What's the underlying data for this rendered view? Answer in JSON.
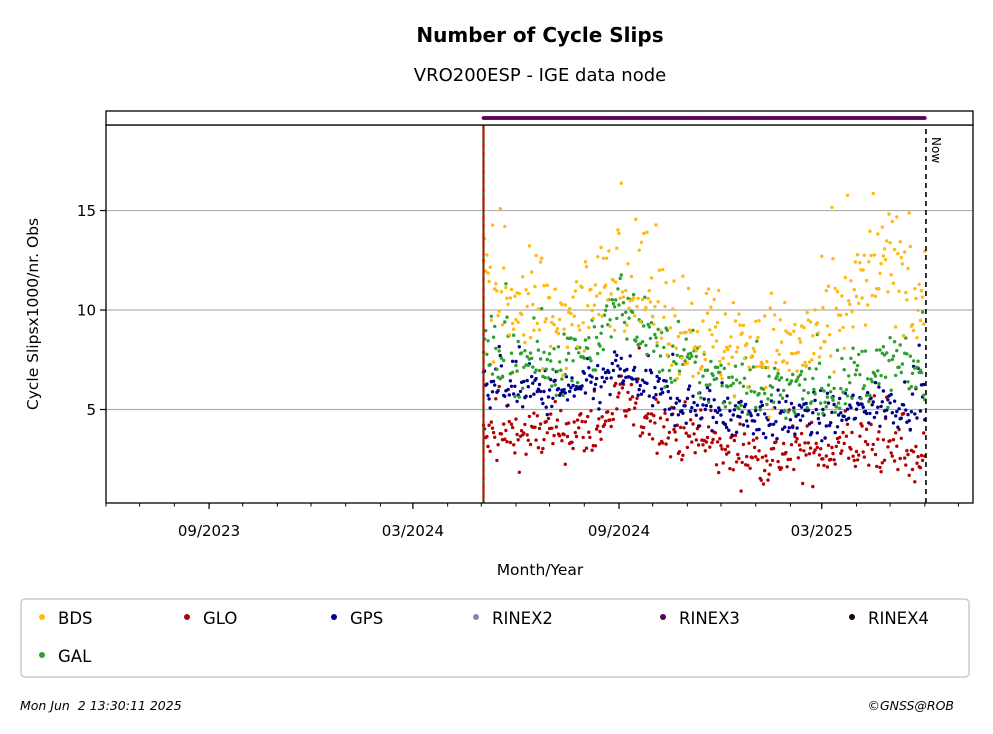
{
  "chart_data": {
    "type": "scatter",
    "title": "Number of Cycle Slips",
    "subtitle": "VRO200ESP - IGE data node",
    "xlabel": "Month/Year",
    "ylabel": "Cycle Slipsx1000/nr. Obs",
    "x_range": [
      "2023-06-01",
      "2025-07-14"
    ],
    "ylim": [
      0.3,
      19.3
    ],
    "y_ticks": [
      5,
      10,
      15
    ],
    "x_ticks": [
      {
        "date": "2023-09-01",
        "label": "09/2023"
      },
      {
        "date": "2024-03-01",
        "label": "03/2024"
      },
      {
        "date": "2024-09-01",
        "label": "09/2024"
      },
      {
        "date": "2025-03-01",
        "label": "03/2025"
      }
    ],
    "grid": "horizontal",
    "data_start": "2024-05-03",
    "data_end": "2025-06-01",
    "now_date": "2025-06-02",
    "now_label": "Now",
    "series": [
      {
        "name": "BDS",
        "color": "#FFB90F",
        "trend": [
          [
            "2024-05-03",
            11.5
          ],
          [
            "2024-07-01",
            9.5
          ],
          [
            "2024-08-15",
            10.5
          ],
          [
            "2024-09-01",
            12.5
          ],
          [
            "2024-10-15",
            9.5
          ],
          [
            "2024-12-01",
            8.5
          ],
          [
            "2025-01-15",
            8
          ],
          [
            "2025-03-01",
            8.5
          ],
          [
            "2025-04-20",
            12
          ],
          [
            "2025-05-10",
            12.5
          ],
          [
            "2025-06-01",
            10
          ]
        ],
        "spread": 1.4
      },
      {
        "name": "GLO",
        "color": "#B40000",
        "trend": [
          [
            "2024-05-03",
            3.5
          ],
          [
            "2024-07-01",
            3.8
          ],
          [
            "2024-08-15",
            4
          ],
          [
            "2024-09-01",
            5.5
          ],
          [
            "2024-10-15",
            4
          ],
          [
            "2024-12-01",
            3
          ],
          [
            "2025-01-15",
            2.6
          ],
          [
            "2025-03-01",
            3
          ],
          [
            "2025-04-20",
            3.2
          ],
          [
            "2025-06-01",
            2.5
          ]
        ],
        "spread": 0.7
      },
      {
        "name": "GPS",
        "color": "#00008B",
        "trend": [
          [
            "2024-05-03",
            6.5
          ],
          [
            "2024-07-01",
            5.8
          ],
          [
            "2024-08-15",
            6.2
          ],
          [
            "2024-09-01",
            7
          ],
          [
            "2024-10-15",
            5.5
          ],
          [
            "2024-12-01",
            4.8
          ],
          [
            "2025-01-15",
            4.6
          ],
          [
            "2025-03-01",
            4.6
          ],
          [
            "2025-04-20",
            5.2
          ],
          [
            "2025-06-01",
            5.5
          ]
        ],
        "spread": 0.6
      },
      {
        "name": "RINEX2",
        "color": "#8C7FBF",
        "trend": [],
        "spread": 0
      },
      {
        "name": "RINEX3",
        "color": "#5A005A",
        "flat_value": 19.5
      },
      {
        "name": "RINEX4",
        "color": "#1A0019",
        "trend": [],
        "spread": 0
      },
      {
        "name": "GAL",
        "color": "#2CA02C",
        "trend": [
          [
            "2024-05-03",
            8
          ],
          [
            "2024-07-01",
            7.2
          ],
          [
            "2024-08-15",
            8.5
          ],
          [
            "2024-09-01",
            10.5
          ],
          [
            "2024-10-15",
            7.5
          ],
          [
            "2024-12-01",
            6.5
          ],
          [
            "2025-01-15",
            6
          ],
          [
            "2025-03-01",
            6
          ],
          [
            "2025-04-20",
            7
          ],
          [
            "2025-06-01",
            7
          ]
        ],
        "spread": 0.8
      }
    ],
    "legend_placement": "bottom"
  },
  "footer": {
    "timestamp": "Mon Jun  2 13:30:11 2025",
    "credit": "©GNSS@ROB"
  }
}
